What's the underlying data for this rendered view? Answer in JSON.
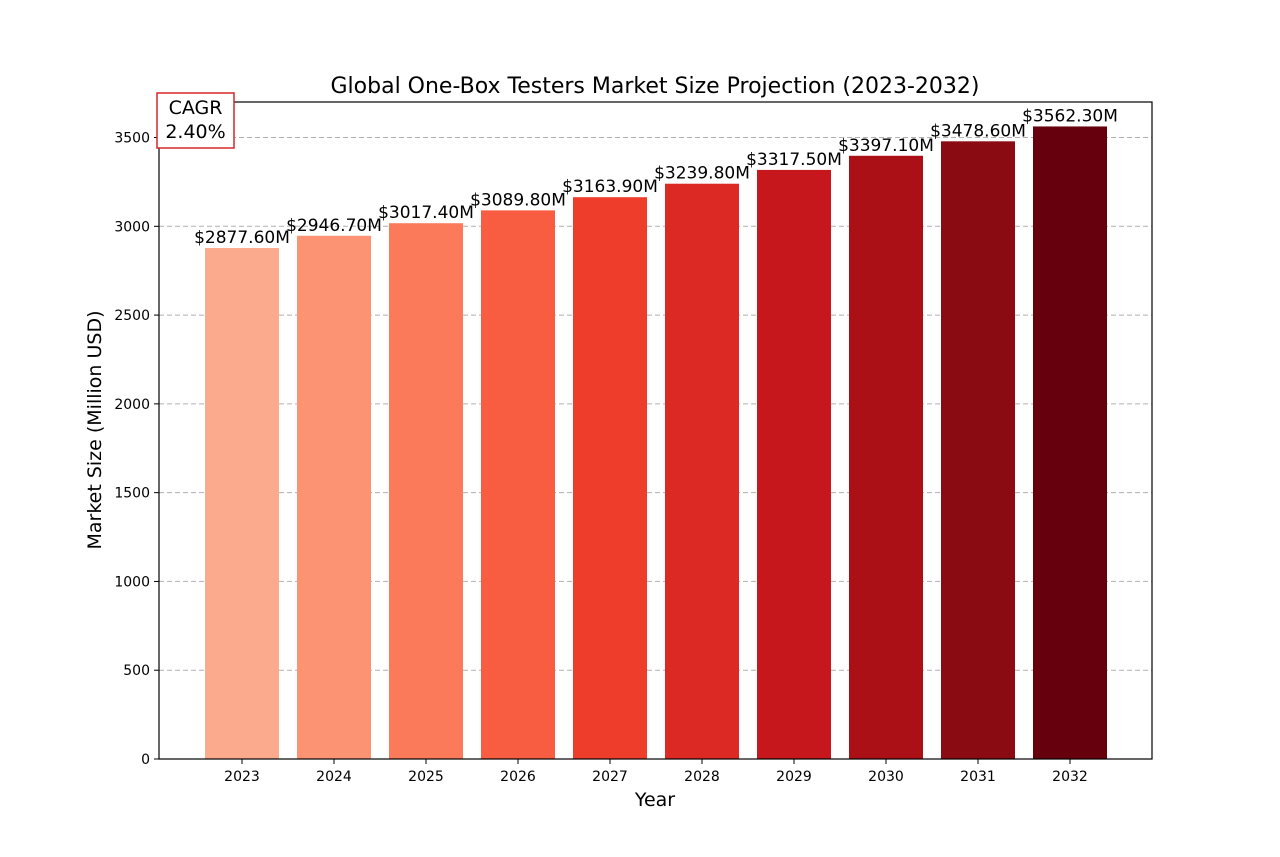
{
  "chart_data": {
    "type": "bar",
    "title": "Global One-Box Testers Market Size Projection (2023-2032)",
    "xlabel": "Year",
    "ylabel": "Market Size (Million USD)",
    "categories": [
      "2023",
      "2024",
      "2025",
      "2026",
      "2027",
      "2028",
      "2029",
      "2030",
      "2031",
      "2032"
    ],
    "values": [
      2877.6,
      2946.7,
      3017.4,
      3089.8,
      3163.9,
      3239.8,
      3317.5,
      3397.1,
      3478.6,
      3562.3
    ],
    "data_labels": [
      "$2877.60M",
      "$2946.70M",
      "$3017.40M",
      "$3089.80M",
      "$3163.90M",
      "$3239.80M",
      "$3317.50M",
      "$3397.10M",
      "$3478.60M",
      "$3562.30M"
    ],
    "bar_colors": [
      "#fcaa8e",
      "#fc9474",
      "#fb7a5a",
      "#f85d42",
      "#ef3d2c",
      "#dc2924",
      "#c5171c",
      "#aa1016",
      "#8b0b13",
      "#67000d"
    ],
    "ylim": [
      0,
      3700
    ],
    "yticks": [
      "0",
      "500",
      "1000",
      "1500",
      "2000",
      "2500",
      "3000",
      "3500"
    ],
    "grid": "horizontal dashed",
    "annotation": {
      "line1": "CAGR",
      "line2": "2.40%",
      "border_color": "#d62728"
    }
  }
}
